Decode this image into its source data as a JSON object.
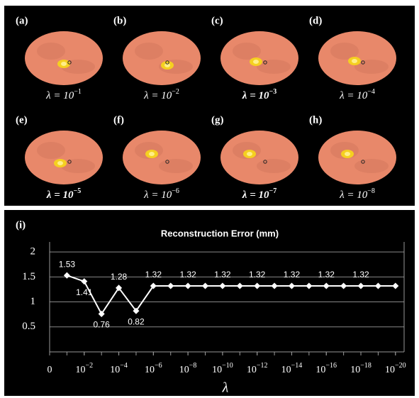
{
  "panels": [
    {
      "label": "(a)",
      "caption": "λ = 10",
      "exponent": "−1",
      "bold": false
    },
    {
      "label": "(b)",
      "caption": "λ = 10",
      "exponent": "−2",
      "bold": false
    },
    {
      "label": "(c)",
      "caption": "λ = 10",
      "exponent": "−3",
      "bold": true
    },
    {
      "label": "(d)",
      "caption": "λ = 10",
      "exponent": "−4",
      "bold": false
    },
    {
      "label": "(e)",
      "caption": "λ = 10",
      "exponent": "−5",
      "bold": true
    },
    {
      "label": "(f)",
      "caption": "λ = 10",
      "exponent": "−6",
      "bold": false
    },
    {
      "label": "(g)",
      "caption": "λ = 10",
      "exponent": "−7",
      "bold": true
    },
    {
      "label": "(h)",
      "caption": "λ = 10",
      "exponent": "−8",
      "bold": false
    }
  ],
  "chart_data": {
    "type": "line",
    "panel_label": "(i)",
    "title": "Reconstruction Error (mm)",
    "x_label": "λ",
    "x": [
      1,
      2,
      3,
      4,
      5,
      6,
      7,
      8,
      9,
      10,
      11,
      12,
      13,
      14,
      15,
      16,
      17,
      18,
      19,
      20
    ],
    "values": [
      1.53,
      1.41,
      0.76,
      1.28,
      0.82,
      1.32,
      1.32,
      1.32,
      1.32,
      1.32,
      1.32,
      1.32,
      1.32,
      1.32,
      1.32,
      1.32,
      1.32,
      1.32,
      1.32,
      1.32
    ],
    "value_labels": [
      "1.53",
      "1.41",
      "0.76",
      "1.28",
      "0.82",
      "1.32",
      null,
      "1.32",
      null,
      "1.32",
      null,
      "1.32",
      null,
      "1.32",
      null,
      "1.32",
      null,
      "1.32",
      null,
      null
    ],
    "color": "#ffffff",
    "xlim": [
      0,
      20.5
    ],
    "xticks": [
      0,
      {
        "value": 2,
        "label": "10−2"
      },
      {
        "value": 4,
        "label": "10−4"
      },
      {
        "value": 6,
        "label": "10−6"
      },
      {
        "value": 8,
        "label": "10−8"
      },
      {
        "value": 10,
        "label": "10−10"
      },
      {
        "value": 12,
        "label": "10−12"
      },
      {
        "value": 14,
        "label": "10−14"
      },
      {
        "value": 16,
        "label": "10−16"
      },
      {
        "value": 18,
        "label": "10−18"
      },
      {
        "value": 20,
        "label": "10−20"
      }
    ],
    "ylim": [
      0,
      2.2
    ],
    "yticks": [
      0.5,
      1,
      1.5,
      2
    ],
    "grid": true
  }
}
